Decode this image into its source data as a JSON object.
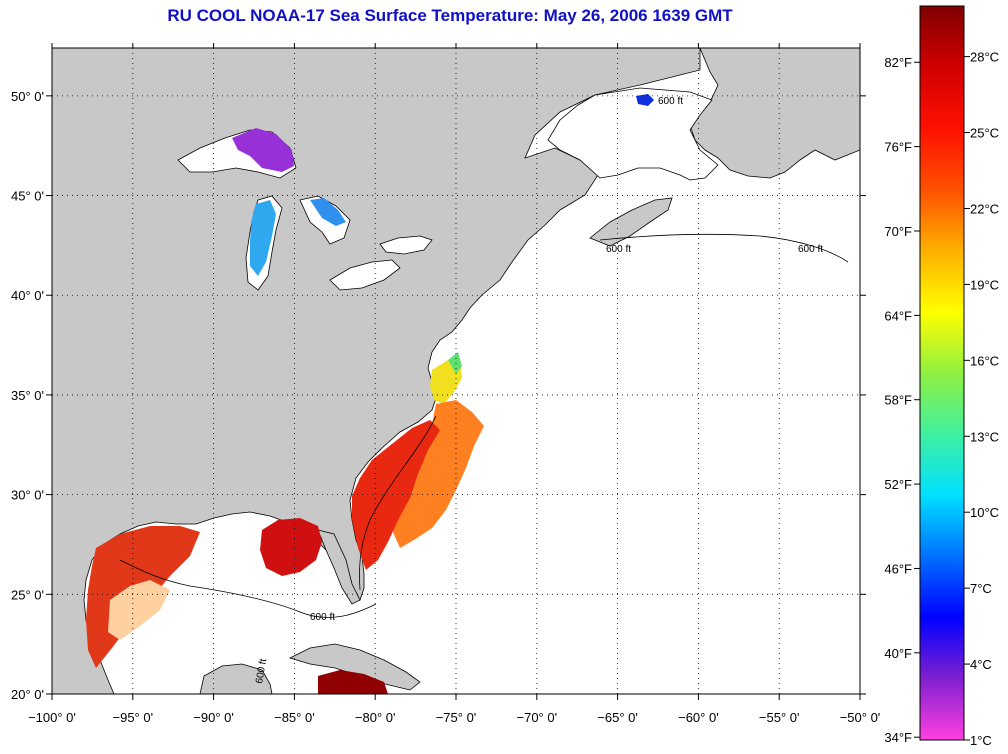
{
  "title": "RU COOL  NOAA-17  Sea Surface Temperature:  May 26, 2006 1639 GMT",
  "map": {
    "lon_range": [
      -100,
      -50
    ],
    "lat_range": [
      20,
      52.4
    ],
    "lon_ticks": [
      {
        "value": -100,
        "label": "−100° 0'"
      },
      {
        "value": -95,
        "label": "−95° 0'"
      },
      {
        "value": -90,
        "label": "−90° 0'"
      },
      {
        "value": -85,
        "label": "−85° 0'"
      },
      {
        "value": -80,
        "label": "−80° 0'"
      },
      {
        "value": -75,
        "label": "−75° 0'"
      },
      {
        "value": -70,
        "label": "−70° 0'"
      },
      {
        "value": -65,
        "label": "−65° 0'"
      },
      {
        "value": -60,
        "label": "−60° 0'"
      },
      {
        "value": -55,
        "label": "−55° 0'"
      },
      {
        "value": -50,
        "label": "−50° 0'"
      }
    ],
    "lat_ticks": [
      {
        "value": 20,
        "label": "20° 0'"
      },
      {
        "value": 25,
        "label": "25° 0'"
      },
      {
        "value": 30,
        "label": "30° 0'"
      },
      {
        "value": 35,
        "label": "35° 0'"
      },
      {
        "value": 40,
        "label": "40° 0'"
      },
      {
        "value": 45,
        "label": "45° 0'"
      },
      {
        "value": 50,
        "label": "50° 0'"
      }
    ],
    "contour_label": "600 ft",
    "contour_label_vertical": "600 ft",
    "colors": {
      "land": "#c8c8c8",
      "ocean": "#ffffff",
      "grid": "#000000"
    }
  },
  "colorbar": {
    "min_c": 1,
    "max_c": 30,
    "celsius_ticks": [
      {
        "value": 1,
        "label": "1°C"
      },
      {
        "value": 4,
        "label": "4°C"
      },
      {
        "value": 7,
        "label": "7°C"
      },
      {
        "value": 10,
        "label": "10°C"
      },
      {
        "value": 13,
        "label": "13°C"
      },
      {
        "value": 16,
        "label": "16°C"
      },
      {
        "value": 19,
        "label": "19°C"
      },
      {
        "value": 22,
        "label": "22°C"
      },
      {
        "value": 25,
        "label": "25°C"
      },
      {
        "value": 28,
        "label": "28°C"
      }
    ],
    "fahrenheit_ticks": [
      {
        "value": 34,
        "label": "34°F"
      },
      {
        "value": 40,
        "label": "40°F"
      },
      {
        "value": 46,
        "label": "46°F"
      },
      {
        "value": 52,
        "label": "52°F"
      },
      {
        "value": 58,
        "label": "58°F"
      },
      {
        "value": 64,
        "label": "64°F"
      },
      {
        "value": 70,
        "label": "70°F"
      },
      {
        "value": 76,
        "label": "76°F"
      },
      {
        "value": 82,
        "label": "82°F"
      }
    ],
    "gradient_stops": [
      "#ff40e0",
      "#8020d0",
      "#0000ff",
      "#0070ff",
      "#00e0ff",
      "#40f0a0",
      "#90f040",
      "#ffff00",
      "#ffb000",
      "#ff5000",
      "#ff1000",
      "#d00000",
      "#800000"
    ]
  }
}
